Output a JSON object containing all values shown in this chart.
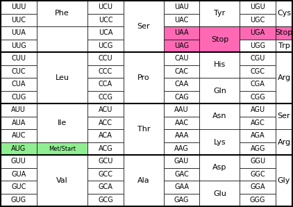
{
  "groups_data": [
    {
      "col0": [
        "UUU",
        "UUC",
        "UUA",
        "UUG"
      ],
      "col1_entries": [
        [
          "Phe",
          0,
          1,
          false
        ],
        [
          "",
          2,
          3,
          false
        ]
      ],
      "col2": [
        "UCU",
        "UCC",
        "UCA",
        "UCG"
      ],
      "col3_entries": [
        [
          "Ser",
          0,
          3,
          false
        ]
      ],
      "col4": [
        "UAU",
        "UAC",
        "UAA",
        "UAG"
      ],
      "col5_entries": [
        [
          "Tyr",
          0,
          1,
          false
        ],
        [
          "Stop",
          2,
          3,
          true
        ]
      ],
      "col6": [
        "UGU",
        "UGC",
        "UGA",
        "UGG"
      ],
      "col7_entries": [
        [
          "Cys",
          0,
          1,
          false
        ],
        [
          "Stop",
          2,
          2,
          true
        ],
        [
          "Trp",
          3,
          3,
          false
        ]
      ],
      "pink_col4": [
        2,
        3
      ],
      "pink_col6": [
        2
      ],
      "green_col0": [],
      "green_col1_rows": []
    },
    {
      "col0": [
        "CUU",
        "CUC",
        "CUA",
        "CUG"
      ],
      "col1_entries": [
        [
          "Leu",
          0,
          3,
          false
        ]
      ],
      "col2": [
        "CCU",
        "CCC",
        "CCA",
        "CCG"
      ],
      "col3_entries": [
        [
          "Pro",
          0,
          3,
          false
        ]
      ],
      "col4": [
        "CAU",
        "CAC",
        "CAA",
        "CAG"
      ],
      "col5_entries": [
        [
          "His",
          0,
          1,
          false
        ],
        [
          "Gln",
          2,
          3,
          false
        ]
      ],
      "col6": [
        "CGU",
        "CGC",
        "CGA",
        "CGG"
      ],
      "col7_entries": [
        [
          "Arg",
          0,
          3,
          false
        ]
      ],
      "pink_col4": [],
      "pink_col6": [],
      "green_col0": [],
      "green_col1_rows": []
    },
    {
      "col0": [
        "AUU",
        "AUA",
        "AUC",
        "AUG"
      ],
      "col1_entries": [
        [
          "Ile",
          0,
          2,
          false
        ],
        [
          "Met/Start",
          3,
          3,
          true
        ]
      ],
      "col2": [
        "ACU",
        "ACC",
        "ACA",
        "ACG"
      ],
      "col3_entries": [
        [
          "Thr",
          0,
          3,
          false
        ]
      ],
      "col4": [
        "AAU",
        "AAC",
        "AAA",
        "AAG"
      ],
      "col5_entries": [
        [
          "Asn",
          0,
          1,
          false
        ],
        [
          "Lys",
          2,
          3,
          false
        ]
      ],
      "col6": [
        "AGU",
        "AGC",
        "AGA",
        "AGG"
      ],
      "col7_entries": [
        [
          "Ser",
          0,
          1,
          false
        ],
        [
          "Arg",
          2,
          3,
          false
        ]
      ],
      "pink_col4": [],
      "pink_col6": [],
      "green_col0": [
        3
      ],
      "green_col1_rows": [
        3
      ]
    },
    {
      "col0": [
        "GUU",
        "GUA",
        "GUC",
        "GUG"
      ],
      "col1_entries": [
        [
          "Val",
          0,
          3,
          false
        ]
      ],
      "col2": [
        "GCU",
        "GCC",
        "GCA",
        "GCG"
      ],
      "col3_entries": [
        [
          "Ala",
          0,
          3,
          false
        ]
      ],
      "col4": [
        "GAU",
        "GAC",
        "GAA",
        "GAG"
      ],
      "col5_entries": [
        [
          "Asp",
          0,
          1,
          false
        ],
        [
          "Glu",
          2,
          3,
          false
        ]
      ],
      "col6": [
        "GGU",
        "GGC",
        "GGA",
        "GGG"
      ],
      "col7_entries": [
        [
          "Gly",
          0,
          3,
          false
        ]
      ],
      "pink_col4": [],
      "pink_col6": [],
      "green_col0": [],
      "green_col1_rows": []
    }
  ],
  "pink": "#FF69B4",
  "green": "#90EE90",
  "white": "#FFFFFF",
  "fontsize_codon": 7.0,
  "fontsize_aa": 8.0,
  "fontsize_metstart": 6.0
}
